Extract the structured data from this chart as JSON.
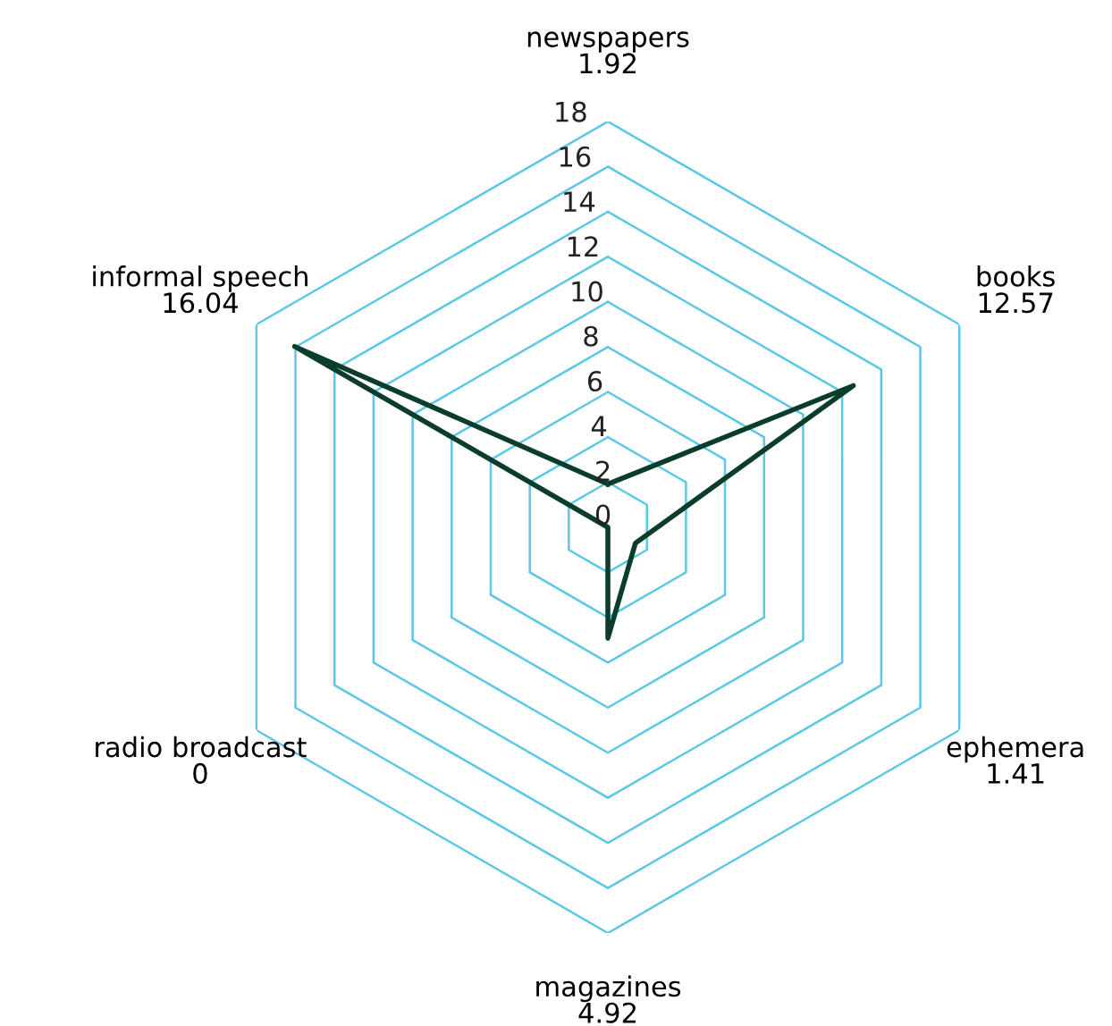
{
  "chart_data": {
    "type": "radar",
    "categories": [
      "newspapers",
      "books",
      "ephemera",
      "magazines",
      "radio broadcast",
      "informal speech"
    ],
    "series": [
      {
        "color": "#0b3d2c",
        "values": [
          1.92,
          12.57,
          1.41,
          4.92,
          0,
          16.04
        ]
      }
    ],
    "ylim": [
      0,
      18
    ],
    "yticks": [
      0,
      2,
      4,
      6,
      8,
      10,
      12,
      14,
      16,
      18
    ],
    "annotations": [
      "1.92",
      "12.57",
      "1.41",
      "4.92",
      "0",
      "16.04"
    ],
    "grid": true,
    "marker": "none",
    "line_style": "solid"
  }
}
